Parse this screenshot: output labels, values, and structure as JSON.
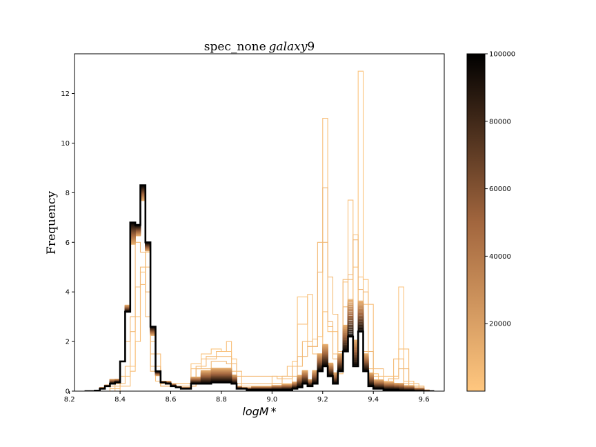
{
  "chart_data": {
    "type": "histogram",
    "title": "spec_none galaxy9",
    "title_parts": {
      "roman": "spec_none",
      "italic": "galaxy",
      "suffix": "9"
    },
    "xlabel": "logM*",
    "xlabel_parts": {
      "italic": "logM",
      "suffix": "*"
    },
    "ylabel": "Frequency",
    "xlim": [
      8.22,
      9.68
    ],
    "ylim": [
      0,
      13.6
    ],
    "xticks": [
      "8.2",
      "8.4",
      "8.6",
      "8.8",
      "9.0",
      "9.2",
      "9.4",
      "9.6"
    ],
    "yticks": [
      "0",
      "2",
      "4",
      "6",
      "8",
      "10",
      "12"
    ],
    "colorbar": {
      "colormap": "copper_r",
      "range": [
        0,
        100000
      ],
      "ticks": [
        "20000",
        "40000",
        "60000",
        "80000",
        "100000"
      ],
      "colors": {
        "low": "#ffc77f",
        "high": "#000000"
      }
    },
    "series_description": "Step histograms of logM* for successive iterations, colored by iteration (light orange = early, black = late)",
    "early_histograms": [
      {
        "name": "early-1",
        "weight": 0.02,
        "bins": [
          [
            8.36,
            0.1
          ],
          [
            8.4,
            0.6
          ],
          [
            8.44,
            1.0
          ],
          [
            8.46,
            3.0
          ],
          [
            8.48,
            4.8
          ],
          [
            8.5,
            5.6
          ],
          [
            8.52,
            2.0
          ],
          [
            8.54,
            0.4
          ],
          [
            8.6,
            0.3
          ],
          [
            8.68,
            1.1
          ],
          [
            8.72,
            1.5
          ],
          [
            8.76,
            1.7
          ],
          [
            8.8,
            1.6
          ],
          [
            8.84,
            1.3
          ],
          [
            8.86,
            0.2
          ],
          [
            9.0,
            0.3
          ],
          [
            9.08,
            1.2
          ],
          [
            9.1,
            3.8
          ],
          [
            9.14,
            1.8
          ],
          [
            9.18,
            2.2
          ],
          [
            9.2,
            3.2
          ],
          [
            9.22,
            2.4
          ],
          [
            9.26,
            0.7
          ],
          [
            9.28,
            4.4
          ],
          [
            9.3,
            3.0
          ],
          [
            9.32,
            5.0
          ],
          [
            9.34,
            12.9
          ],
          [
            9.36,
            4.5
          ],
          [
            9.38,
            0.7
          ],
          [
            9.42,
            0.3
          ],
          [
            9.48,
            0.6
          ],
          [
            9.5,
            4.2
          ],
          [
            9.52,
            0.4
          ],
          [
            9.56,
            0.2
          ],
          [
            9.6,
            0.0
          ]
        ]
      },
      {
        "name": "early-2",
        "weight": 0.04,
        "bins": [
          [
            8.4,
            0.2
          ],
          [
            8.44,
            0.8
          ],
          [
            8.46,
            2.0
          ],
          [
            8.48,
            4.3
          ],
          [
            8.5,
            5.0
          ],
          [
            8.52,
            1.5
          ],
          [
            8.56,
            0.3
          ],
          [
            8.68,
            0.9
          ],
          [
            8.72,
            1.3
          ],
          [
            8.78,
            1.6
          ],
          [
            8.82,
            2.0
          ],
          [
            8.84,
            0.8
          ],
          [
            8.88,
            0.1
          ],
          [
            9.0,
            0.6
          ],
          [
            9.06,
            1.0
          ],
          [
            9.1,
            2.7
          ],
          [
            9.14,
            3.9
          ],
          [
            9.16,
            1.5
          ],
          [
            9.2,
            11.0
          ],
          [
            9.22,
            2.6
          ],
          [
            9.24,
            1.5
          ],
          [
            9.28,
            2.0
          ],
          [
            9.3,
            7.7
          ],
          [
            9.32,
            1.8
          ],
          [
            9.34,
            4.6
          ],
          [
            9.36,
            3.5
          ],
          [
            9.4,
            0.6
          ],
          [
            9.48,
            0.6
          ],
          [
            9.5,
            1.7
          ],
          [
            9.54,
            0.2
          ],
          [
            9.6,
            0.0
          ]
        ]
      },
      {
        "name": "early-3",
        "weight": 0.06,
        "bins": [
          [
            8.38,
            0.3
          ],
          [
            8.42,
            1.0
          ],
          [
            8.44,
            2.4
          ],
          [
            8.46,
            4.2
          ],
          [
            8.48,
            5.0
          ],
          [
            8.5,
            3.0
          ],
          [
            8.52,
            0.8
          ],
          [
            8.56,
            0.2
          ],
          [
            8.7,
            1.0
          ],
          [
            8.74,
            1.4
          ],
          [
            8.8,
            1.4
          ],
          [
            8.84,
            0.6
          ],
          [
            9.02,
            0.5
          ],
          [
            9.08,
            1.0
          ],
          [
            9.12,
            2.0
          ],
          [
            9.16,
            2.1
          ],
          [
            9.18,
            6.0
          ],
          [
            9.22,
            4.6
          ],
          [
            9.24,
            3.1
          ],
          [
            9.26,
            1.6
          ],
          [
            9.28,
            4.5
          ],
          [
            9.32,
            6.3
          ],
          [
            9.34,
            2.5
          ],
          [
            9.36,
            4.0
          ],
          [
            9.38,
            0.9
          ],
          [
            9.44,
            0.4
          ],
          [
            9.48,
            1.3
          ],
          [
            9.52,
            0.3
          ],
          [
            9.58,
            0.1
          ],
          [
            9.6,
            0.0
          ]
        ]
      },
      {
        "name": "early-4",
        "weight": 0.08,
        "bins": [
          [
            8.36,
            0.2
          ],
          [
            8.4,
            1.2
          ],
          [
            8.42,
            2.0
          ],
          [
            8.44,
            3.0
          ],
          [
            8.46,
            6.0
          ],
          [
            8.48,
            5.6
          ],
          [
            8.5,
            4.0
          ],
          [
            8.52,
            1.0
          ],
          [
            8.56,
            0.2
          ],
          [
            8.7,
            0.9
          ],
          [
            8.76,
            1.2
          ],
          [
            8.82,
            1.1
          ],
          [
            8.86,
            0.3
          ],
          [
            9.04,
            0.6
          ],
          [
            9.1,
            1.4
          ],
          [
            9.14,
            1.8
          ],
          [
            9.18,
            4.8
          ],
          [
            9.2,
            8.2
          ],
          [
            9.22,
            2.8
          ],
          [
            9.24,
            1.3
          ],
          [
            9.28,
            3.4
          ],
          [
            9.3,
            4.7
          ],
          [
            9.32,
            6.1
          ],
          [
            9.34,
            4.1
          ],
          [
            9.36,
            1.6
          ],
          [
            9.4,
            0.4
          ],
          [
            9.46,
            0.5
          ],
          [
            9.5,
            0.9
          ],
          [
            9.54,
            0.2
          ],
          [
            9.6,
            0.0
          ]
        ]
      }
    ],
    "evolution_peaks": {
      "start": [
        [
          8.3,
          0.02
        ],
        [
          8.32,
          0.15
        ],
        [
          8.34,
          0.25
        ],
        [
          8.36,
          0.5
        ],
        [
          8.4,
          1.2
        ],
        [
          8.42,
          3.5
        ],
        [
          8.44,
          5.8
        ],
        [
          8.46,
          6.2
        ],
        [
          8.48,
          7.6
        ],
        [
          8.5,
          5.6
        ],
        [
          8.52,
          2.2
        ],
        [
          8.54,
          0.6
        ],
        [
          8.56,
          0.4
        ],
        [
          8.6,
          0.3
        ],
        [
          8.62,
          0.2
        ],
        [
          8.64,
          0.15
        ],
        [
          8.68,
          0.6
        ],
        [
          8.72,
          0.9
        ],
        [
          8.76,
          1.0
        ],
        [
          8.8,
          1.0
        ],
        [
          8.84,
          0.7
        ],
        [
          8.86,
          0.2
        ],
        [
          8.88,
          0.15
        ],
        [
          8.92,
          0.2
        ],
        [
          8.96,
          0.2
        ],
        [
          9.0,
          0.25
        ],
        [
          9.04,
          0.3
        ],
        [
          9.08,
          0.4
        ],
        [
          9.1,
          0.7
        ],
        [
          9.12,
          0.9
        ],
        [
          9.14,
          0.5
        ],
        [
          9.16,
          0.9
        ],
        [
          9.18,
          1.6
        ],
        [
          9.2,
          2.0
        ],
        [
          9.22,
          1.2
        ],
        [
          9.24,
          0.8
        ],
        [
          9.26,
          1.6
        ],
        [
          9.28,
          2.8
        ],
        [
          9.3,
          3.9
        ],
        [
          9.32,
          2.2
        ],
        [
          9.34,
          3.8
        ],
        [
          9.36,
          1.6
        ],
        [
          9.38,
          0.8
        ],
        [
          9.4,
          0.5
        ],
        [
          9.44,
          0.4
        ],
        [
          9.48,
          0.35
        ],
        [
          9.52,
          0.25
        ],
        [
          9.56,
          0.15
        ],
        [
          9.6,
          0.05
        ],
        [
          9.62,
          0.0
        ]
      ],
      "end": [
        [
          8.26,
          0.0
        ],
        [
          8.3,
          0.02
        ],
        [
          8.32,
          0.1
        ],
        [
          8.34,
          0.2
        ],
        [
          8.36,
          0.3
        ],
        [
          8.38,
          0.35
        ],
        [
          8.4,
          1.2
        ],
        [
          8.42,
          3.2
        ],
        [
          8.44,
          6.8
        ],
        [
          8.46,
          6.7
        ],
        [
          8.48,
          8.3
        ],
        [
          8.5,
          6.0
        ],
        [
          8.52,
          2.6
        ],
        [
          8.54,
          0.8
        ],
        [
          8.56,
          0.35
        ],
        [
          8.58,
          0.3
        ],
        [
          8.6,
          0.2
        ],
        [
          8.62,
          0.15
        ],
        [
          8.64,
          0.1
        ],
        [
          8.68,
          0.3
        ],
        [
          8.72,
          0.3
        ],
        [
          8.76,
          0.35
        ],
        [
          8.8,
          0.35
        ],
        [
          8.84,
          0.3
        ],
        [
          8.86,
          0.1
        ],
        [
          8.9,
          0.05
        ],
        [
          8.96,
          0.05
        ],
        [
          9.0,
          0.05
        ],
        [
          9.04,
          0.05
        ],
        [
          9.08,
          0.1
        ],
        [
          9.1,
          0.15
        ],
        [
          9.12,
          0.3
        ],
        [
          9.14,
          0.2
        ],
        [
          9.16,
          0.3
        ],
        [
          9.18,
          0.8
        ],
        [
          9.2,
          1.0
        ],
        [
          9.22,
          0.6
        ],
        [
          9.24,
          0.3
        ],
        [
          9.26,
          0.8
        ],
        [
          9.28,
          1.6
        ],
        [
          9.3,
          2.2
        ],
        [
          9.32,
          1.0
        ],
        [
          9.34,
          2.4
        ],
        [
          9.36,
          0.8
        ],
        [
          9.38,
          0.2
        ],
        [
          9.4,
          0.1
        ],
        [
          9.44,
          0.05
        ],
        [
          9.5,
          0.02
        ],
        [
          9.56,
          0.0
        ]
      ]
    }
  }
}
